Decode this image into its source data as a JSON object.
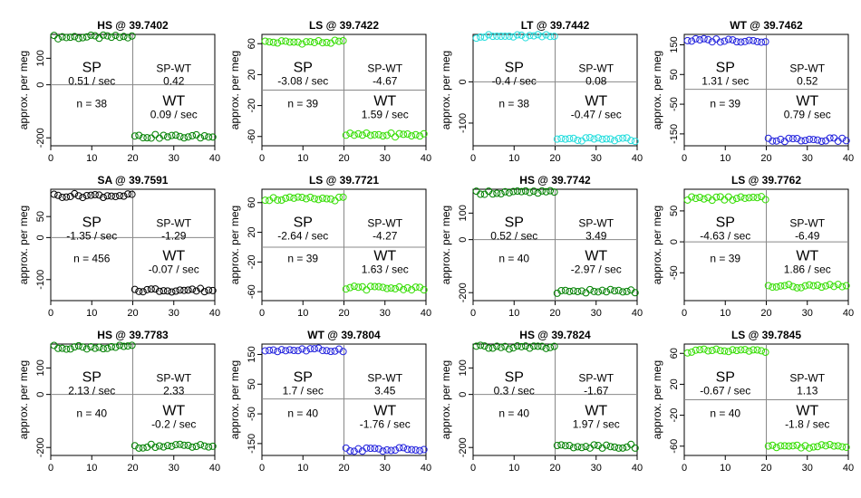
{
  "ylabel": "approx. per meg",
  "chart_data": [
    {
      "type": "scatter",
      "title": "HS @ 39.7402",
      "color": "#008000",
      "xlim": [
        0,
        40
      ],
      "ylim": [
        -230,
        190
      ],
      "yticks": [
        100,
        0,
        -200
      ],
      "xticks": [
        0,
        10,
        20,
        30,
        40
      ],
      "sp_level": 180,
      "wt_level": -195,
      "sp_label": "SP",
      "sp_rate": "0.51 / sec",
      "diff_label": "SP-WT",
      "diff_value": "0.42",
      "n_label": "n = 38",
      "wt_label": "WT",
      "wt_rate": "0.09 / sec"
    },
    {
      "type": "scatter",
      "title": "LS @ 39.7422",
      "color": "#33dd00",
      "xlim": [
        0,
        40
      ],
      "ylim": [
        -72,
        72
      ],
      "yticks": [
        60,
        20,
        -20,
        -60
      ],
      "xticks": [
        0,
        10,
        20,
        30,
        40
      ],
      "sp_level": 62,
      "wt_level": -58,
      "sp_label": "SP",
      "sp_rate": "-3.08 / sec",
      "diff_label": "SP-WT",
      "diff_value": "-4.67",
      "n_label": "n = 39",
      "wt_label": "WT",
      "wt_rate": "1.59 / sec"
    },
    {
      "type": "scatter",
      "title": "LT @ 39.7442",
      "color": "#22dddd",
      "xlim": [
        0,
        40
      ],
      "ylim": [
        -155,
        115
      ],
      "yticks": [
        0,
        -100
      ],
      "xticks": [
        0,
        10,
        20,
        30,
        40
      ],
      "sp_level": 110,
      "wt_level": -140,
      "sp_label": "SP",
      "sp_rate": "-0.4 / sec",
      "diff_label": "SP-WT",
      "diff_value": "0.08",
      "n_label": "n = 38",
      "wt_label": "WT",
      "wt_rate": "-0.47 / sec"
    },
    {
      "type": "scatter",
      "title": "WT @ 39.7462",
      "color": "#2222dd",
      "xlim": [
        0,
        40
      ],
      "ylim": [
        -190,
        185
      ],
      "yticks": [
        150,
        50,
        -50,
        -150
      ],
      "xticks": [
        0,
        10,
        20,
        30,
        40
      ],
      "sp_level": 165,
      "wt_level": -170,
      "sp_label": "SP",
      "sp_rate": "1.31 / sec",
      "diff_label": "SP-WT",
      "diff_value": "0.52",
      "n_label": "n = 39",
      "wt_label": "WT",
      "wt_rate": "0.79 / sec"
    },
    {
      "type": "scatter",
      "title": "SA @ 39.7591",
      "color": "#000000",
      "xlim": [
        0,
        40
      ],
      "ylim": [
        -150,
        115
      ],
      "yticks": [
        50,
        0,
        -100
      ],
      "xticks": [
        0,
        10,
        20,
        30,
        40
      ],
      "sp_level": 100,
      "wt_level": -125,
      "sp_label": "SP",
      "sp_rate": "-1.35 / sec",
      "diff_label": "SP-WT",
      "diff_value": "-1.29",
      "n_label": "n = 456",
      "wt_label": "WT",
      "wt_rate": "-0.07 / sec"
    },
    {
      "type": "scatter",
      "title": "LS @ 39.7721",
      "color": "#33dd00",
      "xlim": [
        0,
        40
      ],
      "ylim": [
        -72,
        78
      ],
      "yticks": [
        60,
        20,
        -20,
        -60
      ],
      "xticks": [
        0,
        10,
        20,
        30,
        40
      ],
      "sp_level": 65,
      "wt_level": -55,
      "sp_label": "SP",
      "sp_rate": "-2.64 / sec",
      "diff_label": "SP-WT",
      "diff_value": "-4.27",
      "n_label": "n = 39",
      "wt_label": "WT",
      "wt_rate": "1.63 / sec"
    },
    {
      "type": "scatter",
      "title": "HS @ 39.7742",
      "color": "#008000",
      "xlim": [
        0,
        40
      ],
      "ylim": [
        -230,
        190
      ],
      "yticks": [
        100,
        0,
        -200
      ],
      "xticks": [
        0,
        10,
        20,
        30,
        40
      ],
      "sp_level": 178,
      "wt_level": -195,
      "sp_label": "SP",
      "sp_rate": "0.52 / sec",
      "diff_label": "SP-WT",
      "diff_value": "3.49",
      "n_label": "n = 40",
      "wt_label": "WT",
      "wt_rate": "-2.97 / sec"
    },
    {
      "type": "scatter",
      "title": "LS @ 39.7762",
      "color": "#33dd00",
      "xlim": [
        0,
        40
      ],
      "ylim": [
        -95,
        85
      ],
      "yticks": [
        50,
        0,
        -50
      ],
      "xticks": [
        0,
        10,
        20,
        30,
        40
      ],
      "sp_level": 70,
      "wt_level": -72,
      "sp_label": "SP",
      "sp_rate": "-4.63 / sec",
      "diff_label": "SP-WT",
      "diff_value": "-6.49",
      "n_label": "n = 39",
      "wt_label": "WT",
      "wt_rate": "1.86 / sec"
    },
    {
      "type": "scatter",
      "title": "HS @ 39.7783",
      "color": "#008000",
      "xlim": [
        0,
        40
      ],
      "ylim": [
        -230,
        190
      ],
      "yticks": [
        100,
        0,
        -200
      ],
      "xticks": [
        0,
        10,
        20,
        30,
        40
      ],
      "sp_level": 178,
      "wt_level": -195,
      "sp_label": "SP",
      "sp_rate": "2.13 / sec",
      "diff_label": "SP-WT",
      "diff_value": "2.33",
      "n_label": "n = 40",
      "wt_label": "WT",
      "wt_rate": "-0.2 / sec"
    },
    {
      "type": "scatter",
      "title": "WT @ 39.7804",
      "color": "#2222dd",
      "xlim": [
        0,
        40
      ],
      "ylim": [
        -190,
        185
      ],
      "yticks": [
        150,
        50,
        -50,
        -150
      ],
      "xticks": [
        0,
        10,
        20,
        30,
        40
      ],
      "sp_level": 165,
      "wt_level": -170,
      "sp_label": "SP",
      "sp_rate": "1.7 / sec",
      "diff_label": "SP-WT",
      "diff_value": "3.45",
      "n_label": "n = 40",
      "wt_label": "WT",
      "wt_rate": "-1.76 / sec"
    },
    {
      "type": "scatter",
      "title": "HS @ 39.7824",
      "color": "#008000",
      "xlim": [
        0,
        40
      ],
      "ylim": [
        -230,
        190
      ],
      "yticks": [
        100,
        0,
        -200
      ],
      "xticks": [
        0,
        10,
        20,
        30,
        40
      ],
      "sp_level": 178,
      "wt_level": -195,
      "sp_label": "SP",
      "sp_rate": "0.3 / sec",
      "diff_label": "SP-WT",
      "diff_value": "-1.67",
      "n_label": "n = 40",
      "wt_label": "WT",
      "wt_rate": "1.97 / sec"
    },
    {
      "type": "scatter",
      "title": "LS @ 39.7845",
      "color": "#33dd00",
      "xlim": [
        0,
        40
      ],
      "ylim": [
        -72,
        72
      ],
      "yticks": [
        60,
        20,
        -20,
        -60
      ],
      "xticks": [
        0,
        10,
        20,
        30,
        40
      ],
      "sp_level": 63,
      "wt_level": -60,
      "sp_label": "SP",
      "sp_rate": "-0.67 / sec",
      "diff_label": "SP-WT",
      "diff_value": "1.13",
      "n_label": "n = 40",
      "wt_label": "WT",
      "wt_rate": "-1.8 / sec"
    }
  ]
}
